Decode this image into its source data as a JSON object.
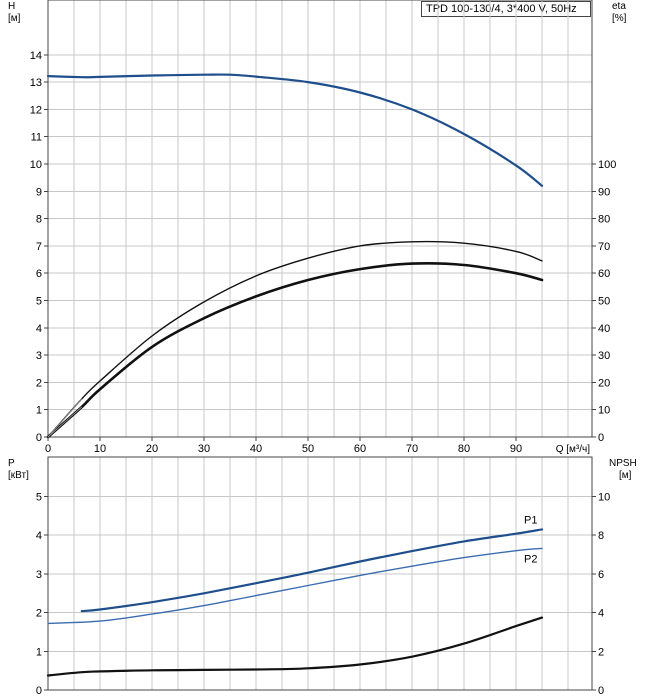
{
  "colors": {
    "blue": "#1f4e8c",
    "blue_light": "#3a6cb0",
    "black": "#111111",
    "grid": "#c8c8c8"
  },
  "chart_data": [
    {
      "type": "line",
      "title": "TPD 100-130/4, 3*400 V, 50Hz",
      "xlabel": "Q [м³/ч]",
      "ylabel_left": "H [м]",
      "ylabel_right": "eta [%]",
      "xlim": [
        0,
        100
      ],
      "ylim_left": [
        0,
        15
      ],
      "ylim_right": [
        0,
        150
      ],
      "grid": true,
      "x_ticks": [
        0,
        10,
        20,
        30,
        40,
        50,
        60,
        70,
        80,
        90
      ],
      "y_ticks_left": [
        0,
        1,
        2,
        3,
        4,
        5,
        6,
        7,
        8,
        9,
        10,
        11,
        12,
        13,
        14
      ],
      "y_ticks_right": [
        0,
        10,
        20,
        30,
        40,
        50,
        60,
        70,
        80,
        90,
        100
      ],
      "series": [
        {
          "axis": "left",
          "color": "blue",
          "x": [
            0,
            6.5,
            10,
            20,
            30,
            35,
            40,
            50,
            60,
            70,
            80,
            90,
            95
          ],
          "y": [
            13.22,
            13.18,
            13.19,
            13.24,
            13.27,
            13.27,
            13.2,
            13.0,
            12.62,
            12.0,
            11.1,
            9.95,
            9.2
          ]
        },
        {
          "axis": "right",
          "color": "black",
          "x": [
            0,
            6.5,
            10,
            20,
            30,
            40,
            50,
            60,
            70,
            80,
            90,
            95
          ],
          "y": [
            0,
            14,
            20.5,
            37,
            49.5,
            59,
            65.5,
            70,
            71.5,
            71,
            68,
            64.5
          ]
        },
        {
          "axis": "right",
          "color": "black",
          "x": [
            0,
            6.5,
            10,
            20,
            30,
            40,
            50,
            60,
            70,
            80,
            90,
            95
          ],
          "y": [
            0,
            11,
            17.5,
            33,
            43.5,
            51.5,
            57.5,
            61.5,
            63.5,
            63,
            60,
            57.5
          ]
        }
      ]
    },
    {
      "type": "line",
      "ylabel_left": "P [кВт]",
      "ylabel_right": "NPSH [м]",
      "xlim": [
        0,
        100
      ],
      "ylim_left": [
        0,
        5.5
      ],
      "ylim_right": [
        0,
        11
      ],
      "grid": true,
      "y_ticks_left": [
        0,
        1,
        2,
        3,
        4,
        5
      ],
      "y_ticks_right": [
        0,
        2,
        4,
        6,
        8,
        10
      ],
      "series": [
        {
          "name": "P1",
          "axis": "left",
          "color": "blue",
          "x": [
            6.5,
            10,
            20,
            30,
            40,
            50,
            60,
            70,
            80,
            90,
            95
          ],
          "y": [
            2.04,
            2.08,
            2.27,
            2.5,
            2.76,
            3.03,
            3.32,
            3.59,
            3.84,
            4.04,
            4.15
          ]
        },
        {
          "name": "P2",
          "axis": "left",
          "color": "blue_light",
          "x": [
            0,
            10,
            20,
            30,
            40,
            50,
            60,
            70,
            80,
            90,
            95
          ],
          "y": [
            1.72,
            1.78,
            1.96,
            2.18,
            2.44,
            2.7,
            2.96,
            3.2,
            3.42,
            3.6,
            3.66
          ]
        },
        {
          "axis": "right",
          "color": "black",
          "x": [
            0,
            6.5,
            10,
            20,
            30,
            40,
            50,
            60,
            70,
            80,
            90,
            95
          ],
          "y": [
            0.75,
            0.92,
            0.96,
            1.02,
            1.04,
            1.06,
            1.12,
            1.32,
            1.72,
            2.4,
            3.3,
            3.74
          ]
        }
      ]
    }
  ]
}
